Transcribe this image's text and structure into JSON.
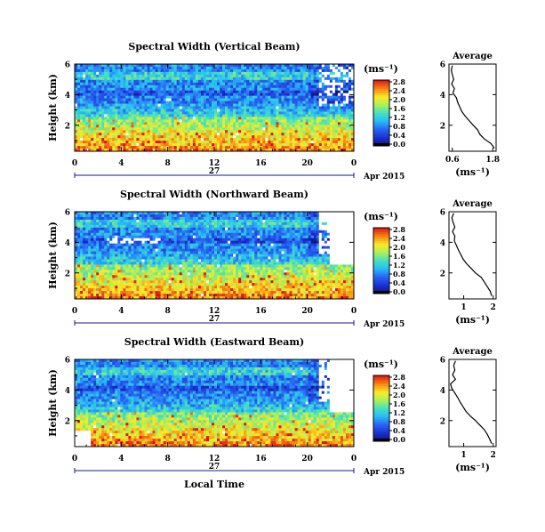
{
  "chart_data": [
    {
      "type": "heatmap",
      "title": "Spectral Width (Vertical Beam)",
      "ylabel": "Height (km)",
      "xlabel": "",
      "x_ticks": [
        "0",
        "4",
        "8",
        "12",
        "16",
        "20",
        "0"
      ],
      "day_label": "27",
      "date_label": "Apr 2015",
      "y_ticks": [
        "2",
        "4",
        "6"
      ],
      "xlim_hours": [
        0,
        24
      ],
      "ylim_km": [
        0.3,
        6.0
      ],
      "colorbar": {
        "unit": "(ms⁻¹)",
        "ticks": [
          "0.0",
          "0.4",
          "0.8",
          "1.2",
          "1.6",
          "2.0",
          "2.4",
          "2.8"
        ]
      },
      "profile": {
        "title": "Average",
        "x_ticks": [
          "0.6",
          "1.8"
        ],
        "xlabel": "(ms⁻¹)",
        "y_ticks": [
          "2",
          "4",
          "6"
        ],
        "xlim": [
          0.5,
          1.9
        ],
        "height": [
          0.5,
          0.8,
          1.1,
          1.4,
          1.7,
          2.0,
          2.3,
          2.6,
          2.9,
          3.2,
          3.5,
          3.8,
          4.1,
          4.4,
          4.7,
          5.0,
          5.3,
          5.6,
          5.9
        ],
        "value": [
          1.85,
          1.75,
          1.55,
          1.42,
          1.35,
          1.22,
          1.1,
          0.98,
          0.88,
          0.82,
          0.76,
          0.72,
          0.62,
          0.66,
          0.58,
          0.64,
          0.6,
          0.57,
          0.6
        ]
      }
    },
    {
      "type": "heatmap",
      "title": "Spectral Width (Northward Beam)",
      "ylabel": "Height (km)",
      "xlabel": "",
      "x_ticks": [
        "0",
        "4",
        "8",
        "12",
        "16",
        "20",
        "0"
      ],
      "day_label": "27",
      "date_label": "Apr 2015",
      "y_ticks": [
        "2",
        "4",
        "6"
      ],
      "xlim_hours": [
        0,
        24
      ],
      "ylim_km": [
        0.3,
        6.0
      ],
      "colorbar": {
        "unit": "(ms⁻¹)",
        "ticks": [
          "0.0",
          "0.4",
          "0.8",
          "1.2",
          "1.6",
          "2.0",
          "2.4",
          "2.8"
        ]
      },
      "profile": {
        "title": "Average",
        "x_ticks": [
          "1",
          "2"
        ],
        "xlabel": "(ms⁻¹)",
        "y_ticks": [
          "2",
          "4",
          "6"
        ],
        "xlim": [
          0.5,
          2.1
        ],
        "height": [
          0.5,
          0.8,
          1.1,
          1.4,
          1.7,
          2.0,
          2.3,
          2.6,
          2.9,
          3.2,
          3.5,
          3.8,
          4.1,
          4.4,
          4.7,
          5.0,
          5.3,
          5.6,
          5.9
        ],
        "value": [
          1.95,
          1.9,
          1.8,
          1.7,
          1.6,
          1.4,
          1.25,
          1.1,
          0.98,
          0.9,
          0.82,
          0.75,
          0.68,
          0.7,
          0.62,
          0.7,
          0.64,
          0.6,
          0.66
        ]
      }
    },
    {
      "type": "heatmap",
      "title": "Spectral Width (Eastward Beam)",
      "ylabel": "Height (km)",
      "xlabel": "Local Time",
      "x_ticks": [
        "0",
        "4",
        "8",
        "12",
        "16",
        "20",
        "0"
      ],
      "day_label": "27",
      "date_label": "Apr 2015",
      "y_ticks": [
        "2",
        "4",
        "6"
      ],
      "xlim_hours": [
        0,
        24
      ],
      "ylim_km": [
        0.3,
        6.0
      ],
      "colorbar": {
        "unit": "(ms⁻¹)",
        "ticks": [
          "0.0",
          "0.4",
          "0.8",
          "1.2",
          "1.6",
          "2.0",
          "2.4",
          "2.8"
        ]
      },
      "profile": {
        "title": "Average",
        "x_ticks": [
          "1",
          "2"
        ],
        "xlabel": "(ms⁻¹)",
        "y_ticks": [
          "2",
          "4",
          "6"
        ],
        "xlim": [
          0.5,
          2.1
        ],
        "height": [
          0.5,
          0.8,
          1.1,
          1.4,
          1.7,
          2.0,
          2.3,
          2.6,
          2.9,
          3.2,
          3.5,
          3.8,
          4.1,
          4.4,
          4.7,
          5.0,
          5.3,
          5.6,
          5.9
        ],
        "value": [
          1.95,
          1.88,
          1.8,
          1.7,
          1.55,
          1.4,
          1.22,
          1.08,
          0.98,
          0.88,
          0.8,
          0.7,
          0.6,
          0.55,
          0.72,
          0.62,
          0.7,
          0.66,
          0.72
        ]
      }
    }
  ]
}
